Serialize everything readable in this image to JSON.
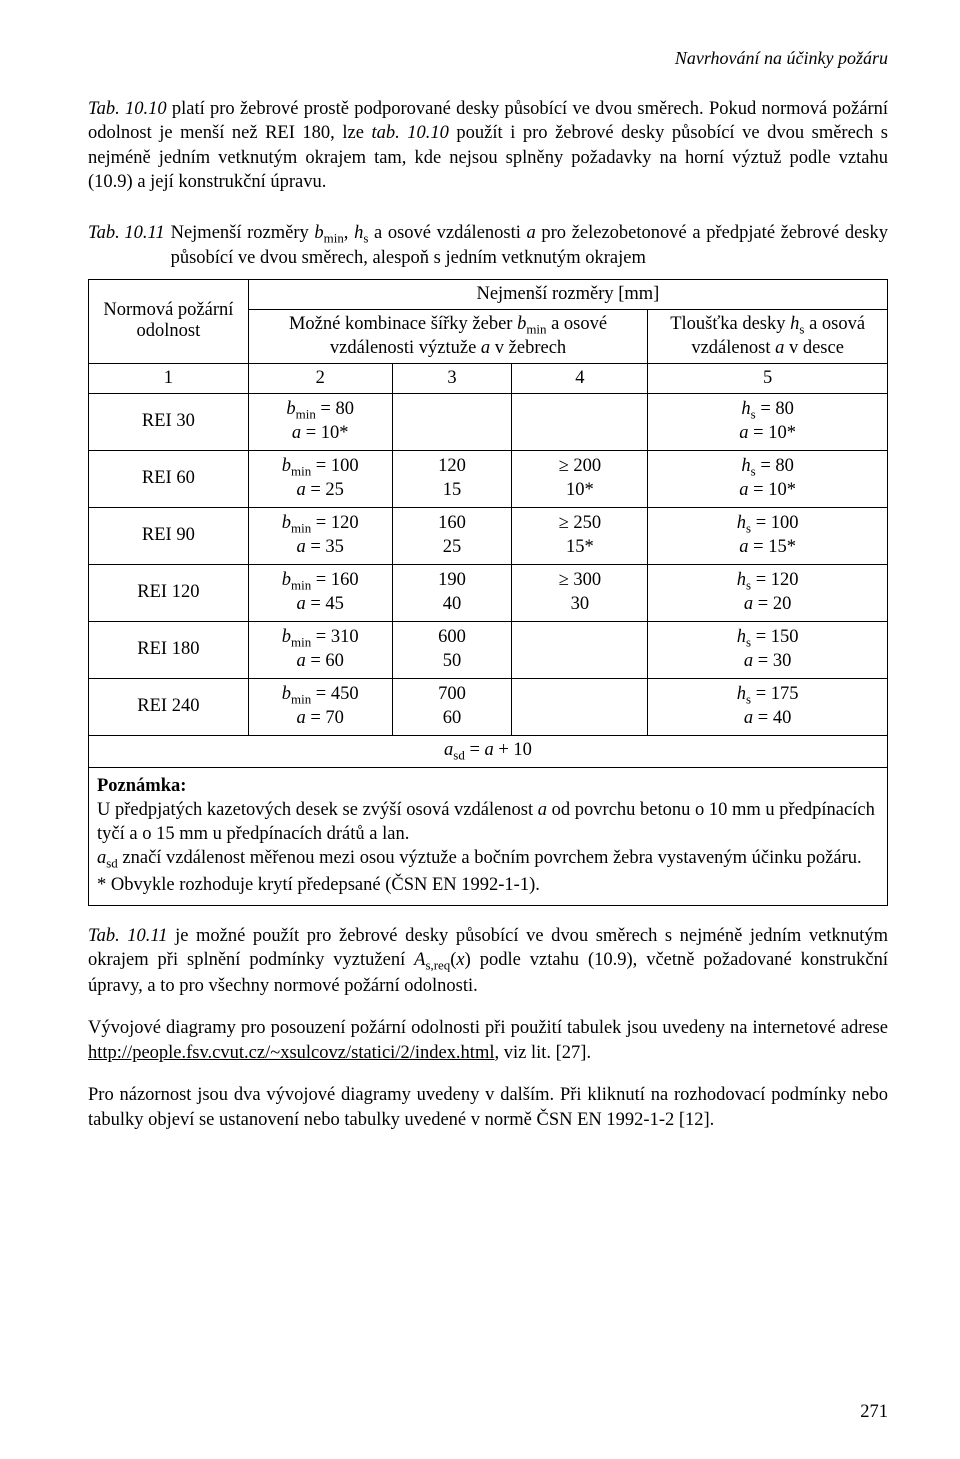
{
  "header": {
    "running_head": "Navrhování na účinky požáru"
  },
  "para1": {
    "seg1": "Tab. 10.10",
    "seg2": " platí pro žebrové prostě podporované desky působící ve dvou směrech. Pokud normová požární odolnost je menší než REI 180, lze ",
    "seg3": "tab. 10.10",
    "seg4": " použít i pro žebrové desky působící ve dvou směrech s nejméně jedním vetknutým okrajem tam, kde nejsou splněny požadavky na horní výztuž podle vztahu (10.9) a její konstrukční úpravu."
  },
  "tableCaption": {
    "label": "Tab. 10.11",
    "text_a": "Nejmenší rozměry ",
    "text_bmin": "b",
    "text_bmin_sub": "min",
    "text_b": ", ",
    "text_hs": "h",
    "text_hs_sub": "s",
    "text_c": " a osové vzdálenosti ",
    "text_a_var": "a",
    "text_d": " pro železobetonové a předpjaté žebrové desky působící ve dvou směrech, alespoň s jedním vetknutým okrajem"
  },
  "table": {
    "head": {
      "col1": "Normová požární odolnost",
      "row1_span": "Nejmenší rozměry [mm]",
      "row2_left_a": "Možné kombinace šířky žeber ",
      "row2_left_b": "b",
      "row2_left_b_sub": "min",
      "row2_left_c": " a osové vzdálenosti výztuže ",
      "row2_left_d": "a",
      "row2_left_e": " v žebrech",
      "row2_right_a": "Tloušťka desky ",
      "row2_right_b": "h",
      "row2_right_b_sub": "s",
      "row2_right_c": " a osová vzdálenost ",
      "row2_right_d": "a",
      "row2_right_e": " v desce"
    },
    "numRow": {
      "c1": "1",
      "c2": "2",
      "c3": "3",
      "c4": "4",
      "c5": "5"
    },
    "rows": [
      {
        "rei": "REI 30",
        "c2a": "b",
        "c2a_sub": "min",
        "c2a_eq": " = 80",
        "c2b": "a",
        "c2b_eq": " = 10*",
        "c3": "",
        "c3b": "",
        "c4": "",
        "c4b": "",
        "c5a": "h",
        "c5a_sub": "s",
        "c5a_eq": " = 80",
        "c5b": "a",
        "c5b_eq": " = 10*"
      },
      {
        "rei": "REI 60",
        "c2a": "b",
        "c2a_sub": "min",
        "c2a_eq": " = 100",
        "c2b": "a",
        "c2b_eq": " = 25",
        "c3": "120",
        "c3b": "15",
        "c4": "≥ 200",
        "c4b": "10*",
        "c5a": "h",
        "c5a_sub": "s",
        "c5a_eq": " = 80",
        "c5b": "a",
        "c5b_eq": " = 10*"
      },
      {
        "rei": "REI 90",
        "c2a": "b",
        "c2a_sub": "min",
        "c2a_eq": " = 120",
        "c2b": "a",
        "c2b_eq": " = 35",
        "c3": "160",
        "c3b": "25",
        "c4": "≥ 250",
        "c4b": "15*",
        "c5a": "h",
        "c5a_sub": "s",
        "c5a_eq": " = 100",
        "c5b": "a",
        "c5b_eq": " = 15*"
      },
      {
        "rei": "REI 120",
        "c2a": "b",
        "c2a_sub": "min",
        "c2a_eq": " = 160",
        "c2b": "a",
        "c2b_eq": " = 45",
        "c3": "190",
        "c3b": "40",
        "c4": "≥ 300",
        "c4b": "30",
        "c5a": "h",
        "c5a_sub": "s",
        "c5a_eq": " = 120",
        "c5b": "a",
        "c5b_eq": " = 20"
      },
      {
        "rei": "REI 180",
        "c2a": "b",
        "c2a_sub": "min",
        "c2a_eq": " = 310",
        "c2b": "a",
        "c2b_eq": " = 60",
        "c3": "600",
        "c3b": "50",
        "c4": "",
        "c4b": "",
        "c5a": "h",
        "c5a_sub": "s",
        "c5a_eq": " = 150",
        "c5b": "a",
        "c5b_eq": " = 30"
      },
      {
        "rei": "REI 240",
        "c2a": "b",
        "c2a_sub": "min",
        "c2a_eq": " = 450",
        "c2b": "a",
        "c2b_eq": " = 70",
        "c3": "700",
        "c3b": "60",
        "c4": "",
        "c4b": "",
        "c5a": "h",
        "c5a_sub": "s",
        "c5a_eq": " = 175",
        "c5b": "a",
        "c5b_eq": " = 40"
      }
    ],
    "asdRow": {
      "sym": "a",
      "sym_sub": "sd",
      "eq": " = ",
      "rhs": "a",
      "tail": " + 10"
    },
    "note": {
      "label": "Poznámka:",
      "line1a": "U předpjatých kazetových desek se zvýší osová vzdálenost ",
      "line1b": "a",
      "line1c": " od povrchu betonu o 10 mm u předpínacích tyčí a o 15 mm u předpínacích drátů a lan.",
      "line2a": "a",
      "line2a_sub": "sd",
      "line2b": " značí vzdálenost měřenou mezi osou výztuže a bočním povrchem žebra vystaveným účinku požáru.",
      "line3": "* Obvykle rozhoduje krytí předepsané (ČSN EN 1992-1-1)."
    }
  },
  "para2": {
    "seg1": "Tab. 10.11",
    "seg2": " je možné použít pro žebrové desky působící ve dvou směrech s nejméně jedním vetknutým okrajem při splnění podmínky vyztužení ",
    "seg3": "A",
    "seg3_sub": "s,req",
    "seg4": "(",
    "seg4x": "x",
    "seg5": ") podle vztahu (10.9), včetně požadované konstrukční úpravy, a to pro všechny normové požární odolnosti."
  },
  "para3": {
    "seg1": "Vývojové diagramy pro posouzení požární odolnosti při použití tabulek jsou uvedeny na internetové adrese ",
    "link": "http://people.fsv.cvut.cz/~xsulcovz/statici/2/index.html",
    "seg2": ", viz lit. [27]."
  },
  "para4": {
    "seg1": "Pro názornost jsou dva vývojové diagramy uvedeny v dalším. Při kliknutí na rozhodovací podmínky nebo tabulky objeví se ustanovení nebo tabulky uvedené v normě ČSN EN 1992-1-2 [12]."
  },
  "pageNumber": "271",
  "style": {
    "font_family": "Times New Roman",
    "body_font_size_pt": 12,
    "text_color": "#000000",
    "background_color": "#ffffff",
    "table_border_color": "#000000"
  }
}
